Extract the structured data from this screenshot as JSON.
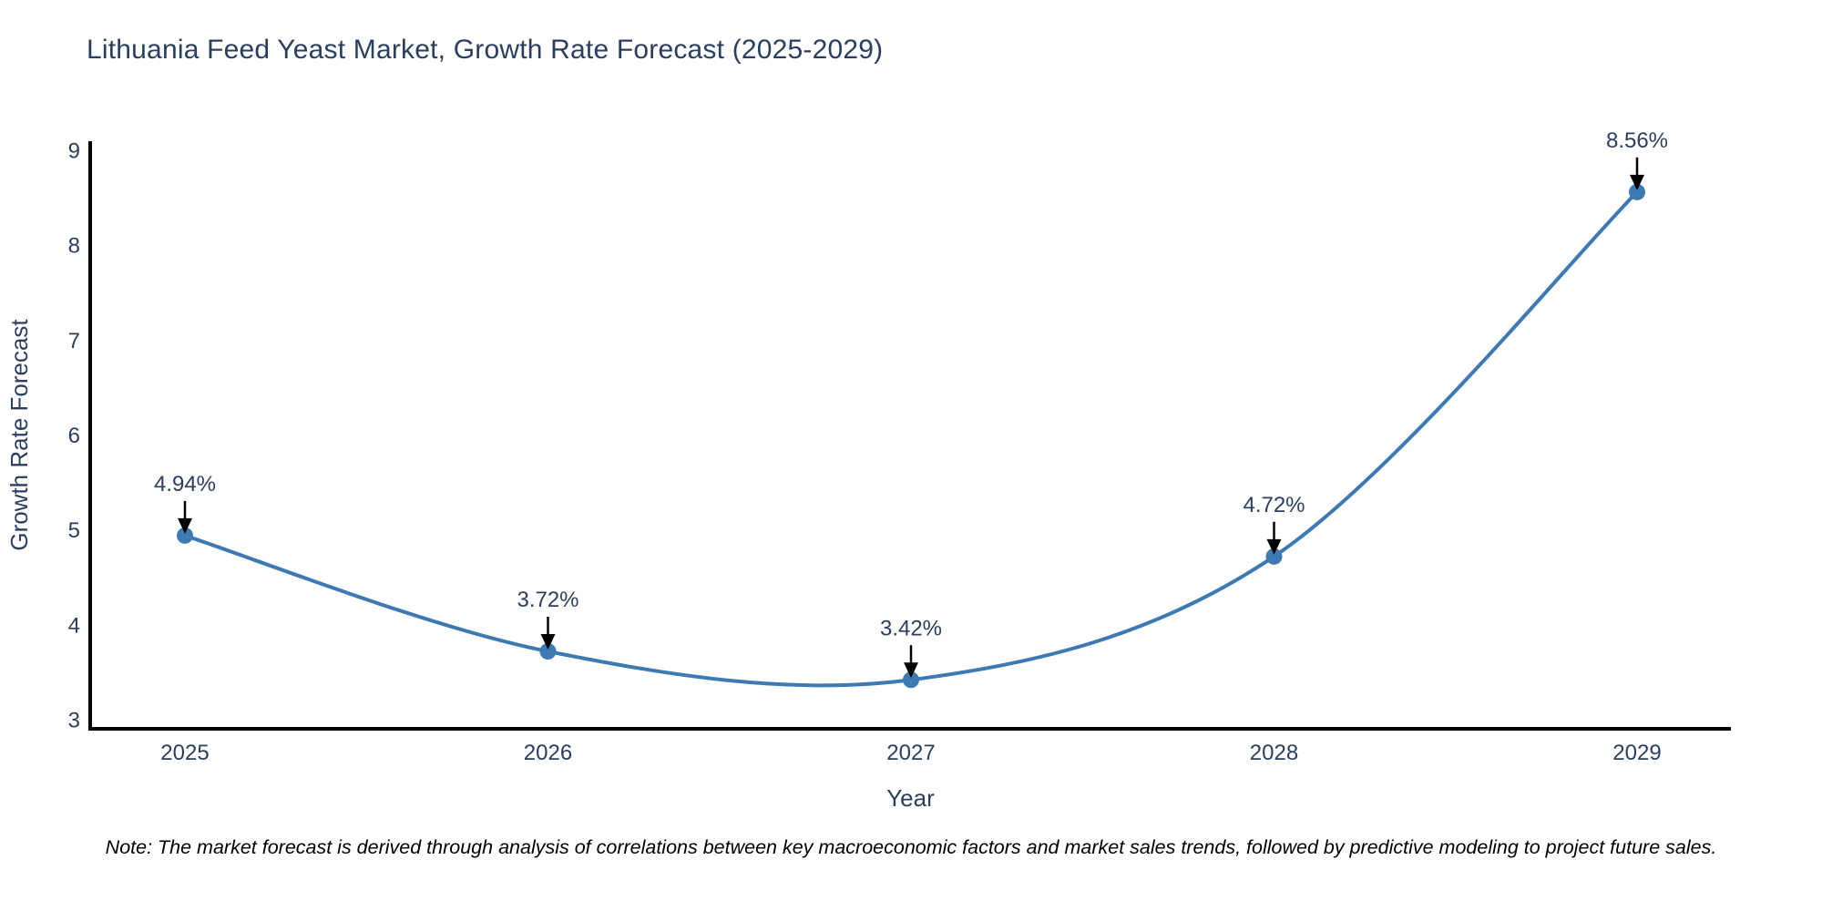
{
  "title": "Lithuania Feed Yeast Market, Growth Rate Forecast (2025-2029)",
  "note": "Note: The market forecast is derived through analysis of correlations between key macroeconomic factors and market sales trends, followed by predictive modeling to project future sales.",
  "chart_data": {
    "type": "line",
    "line_shape": "spline",
    "title": "Lithuania Feed Yeast Market, Growth Rate Forecast (2025-2029)",
    "x": [
      2025,
      2026,
      2027,
      2028,
      2029
    ],
    "y": [
      4.94,
      3.72,
      3.42,
      4.72,
      8.56
    ],
    "point_labels": [
      "4.94%",
      "3.72%",
      "3.42%",
      "4.72%",
      "8.56%"
    ],
    "xlabel": "Year",
    "ylabel": "Growth Rate Forecast",
    "xticks": [
      "2025",
      "2026",
      "2027",
      "2028",
      "2029"
    ],
    "yticks": [
      3,
      4,
      5,
      6,
      7,
      8,
      9
    ],
    "ylim": [
      2.9,
      9.1
    ],
    "grid": false,
    "legend": false,
    "markers": true,
    "annotations_have_arrows": true,
    "colors": {
      "line": "#3d79b3",
      "marker": "#3d79b3",
      "axis_line": "#000000",
      "tick_text": "#2a3f5f",
      "axis_title_text": "#2a3f5f",
      "annotation_text": "#2a3f5f",
      "annotation_arrow": "#000000",
      "title_text": "#2a3f5f",
      "note_text": "#000000",
      "background": "#ffffff"
    }
  }
}
